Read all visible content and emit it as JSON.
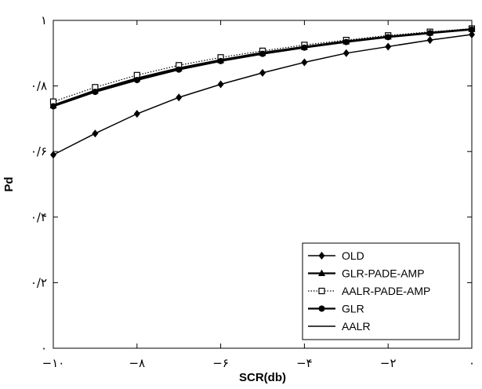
{
  "chart_data": {
    "type": "line",
    "xlabel": "SCR(db)",
    "ylabel": "Pd",
    "xlim": [
      -10,
      0
    ],
    "ylim": [
      0,
      1
    ],
    "x_ticks": [
      -10,
      -8,
      -6,
      -4,
      -2,
      0
    ],
    "x_tick_labels": [
      "−۱۰",
      "−۸",
      "−۶",
      "−۴",
      "−۲",
      "۰"
    ],
    "y_ticks": [
      0,
      0.2,
      0.4,
      0.6,
      0.8,
      1
    ],
    "y_tick_labels": [
      "۰",
      "۰/۲",
      "۰/۴",
      "۰/۶",
      "۰/۸",
      "۱"
    ],
    "grid": false,
    "legend_position": "bottom-right",
    "x": [
      -10,
      -9,
      -8,
      -7,
      -6,
      -5,
      -4,
      -3,
      -2,
      -1,
      0
    ],
    "series": [
      {
        "name": "OLD",
        "marker": "diamond",
        "line": "solid",
        "values": [
          0.59,
          0.655,
          0.715,
          0.765,
          0.805,
          0.84,
          0.872,
          0.9,
          0.92,
          0.94,
          0.957
        ]
      },
      {
        "name": "GLR-PADE-AMP",
        "marker": "triangle",
        "line": "solid",
        "values": [
          0.74,
          0.785,
          0.822,
          0.853,
          0.878,
          0.9,
          0.918,
          0.935,
          0.95,
          0.962,
          0.973
        ]
      },
      {
        "name": "AALR-PADE-AMP",
        "marker": "square-open",
        "line": "dotted",
        "values": [
          0.752,
          0.796,
          0.833,
          0.863,
          0.887,
          0.907,
          0.925,
          0.94,
          0.954,
          0.965,
          0.975
        ]
      },
      {
        "name": "GLR",
        "marker": "circle",
        "line": "solid",
        "values": [
          0.738,
          0.782,
          0.818,
          0.85,
          0.876,
          0.898,
          0.917,
          0.934,
          0.949,
          0.961,
          0.972
        ]
      },
      {
        "name": "AALR",
        "marker": "none",
        "line": "solid",
        "values": [
          0.742,
          0.787,
          0.824,
          0.855,
          0.88,
          0.902,
          0.92,
          0.937,
          0.951,
          0.963,
          0.974
        ]
      }
    ]
  }
}
